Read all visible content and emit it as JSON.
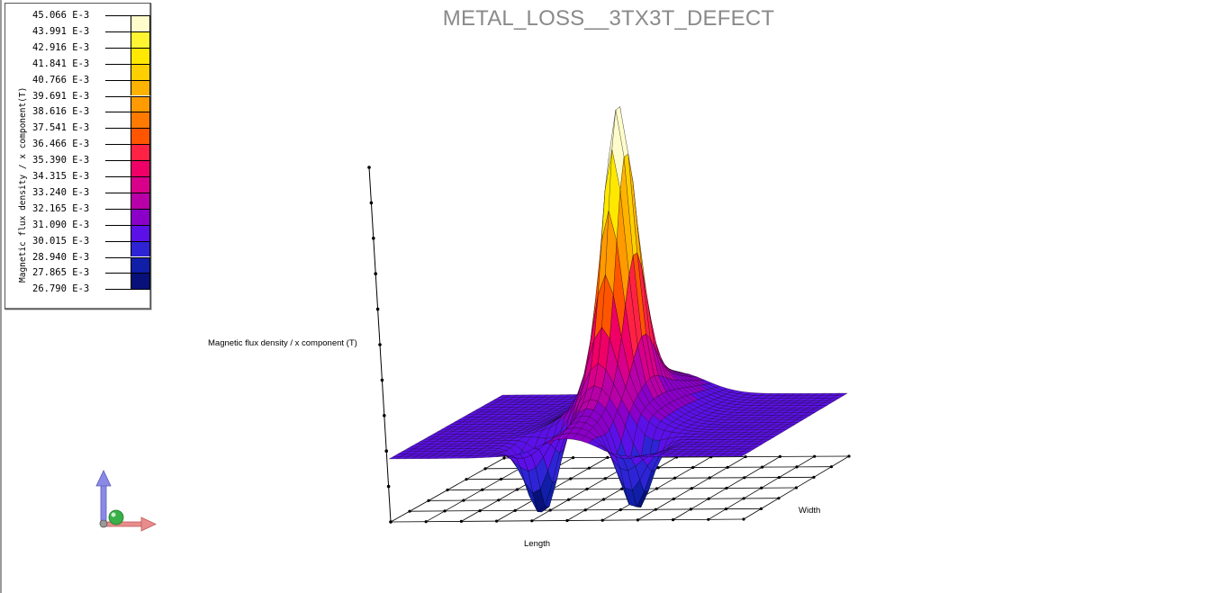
{
  "window": {
    "title": "METAL_LOSS__3TX3T_DEFECT"
  },
  "legend": {
    "title": "Magnetic flux density / x component(T)",
    "levels": [
      {
        "label": "45.066 E-3",
        "color": "#fffccc"
      },
      {
        "label": "43.991 E-3",
        "color": "#fff533"
      },
      {
        "label": "42.916 E-3",
        "color": "#ffe800"
      },
      {
        "label": "41.841 E-3",
        "color": "#ffd000"
      },
      {
        "label": "40.766 E-3",
        "color": "#ffb300"
      },
      {
        "label": "39.691 E-3",
        "color": "#ff9a00"
      },
      {
        "label": "38.616 E-3",
        "color": "#ff7a00"
      },
      {
        "label": "37.541 E-3",
        "color": "#ff5500"
      },
      {
        "label": "36.466 E-3",
        "color": "#ff2244"
      },
      {
        "label": "35.390 E-3",
        "color": "#ee0066"
      },
      {
        "label": "34.315 E-3",
        "color": "#d8008a"
      },
      {
        "label": "33.240 E-3",
        "color": "#b800a8"
      },
      {
        "label": "32.165 E-3",
        "color": "#8a00c8"
      },
      {
        "label": "31.090 E-3",
        "color": "#5c10e8"
      },
      {
        "label": "30.015 E-3",
        "color": "#2e24d6"
      },
      {
        "label": "28.940 E-3",
        "color": "#101ea8"
      },
      {
        "label": "27.865 E-3",
        "color": "#08107a"
      },
      {
        "label": "26.790 E-3",
        "color": ""
      }
    ]
  },
  "plot": {
    "z_axis_label": "Magnetic flux density / x component (T)",
    "x_axis_label": "Length",
    "y_axis_label": "Width",
    "line_color": "#000000"
  },
  "triad": {
    "z_color": "#6a6ad8",
    "x_color": "#e07070",
    "y_color": "#2a9a3a"
  }
}
